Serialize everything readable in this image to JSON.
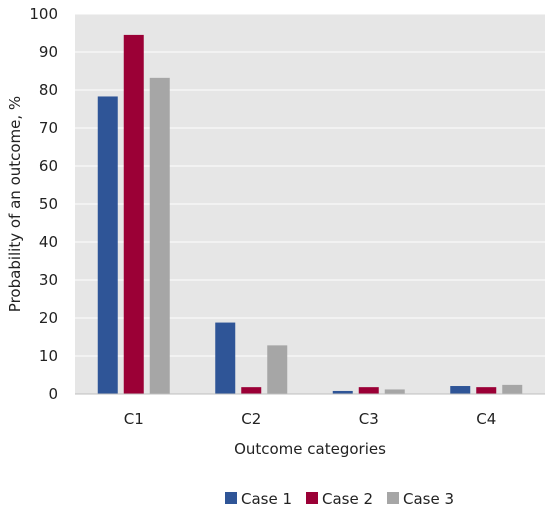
{
  "chart_data": {
    "type": "bar",
    "title": "",
    "xlabel": "Outcome categories",
    "ylabel": "Probability of an outcome, %",
    "categories": [
      "C1",
      "C2",
      "C3",
      "C4"
    ],
    "series": [
      {
        "name": "Case 1",
        "color": "#2F5597",
        "values": [
          78.3,
          18.8,
          0.8,
          2.1
        ]
      },
      {
        "name": "Case 2",
        "color": "#9B0036",
        "values": [
          94.5,
          1.8,
          1.8,
          1.8
        ]
      },
      {
        "name": "Case 3",
        "color": "#A6A6A6",
        "values": [
          83.2,
          12.8,
          1.2,
          2.4
        ]
      }
    ],
    "ylim": [
      0,
      100
    ],
    "yticks": [
      0,
      10,
      20,
      30,
      40,
      50,
      60,
      70,
      80,
      90,
      100
    ],
    "grid": true,
    "plot_background": "#E6E6E6",
    "gridline_color": "#FFFFFF",
    "legend_position": "bottom"
  }
}
